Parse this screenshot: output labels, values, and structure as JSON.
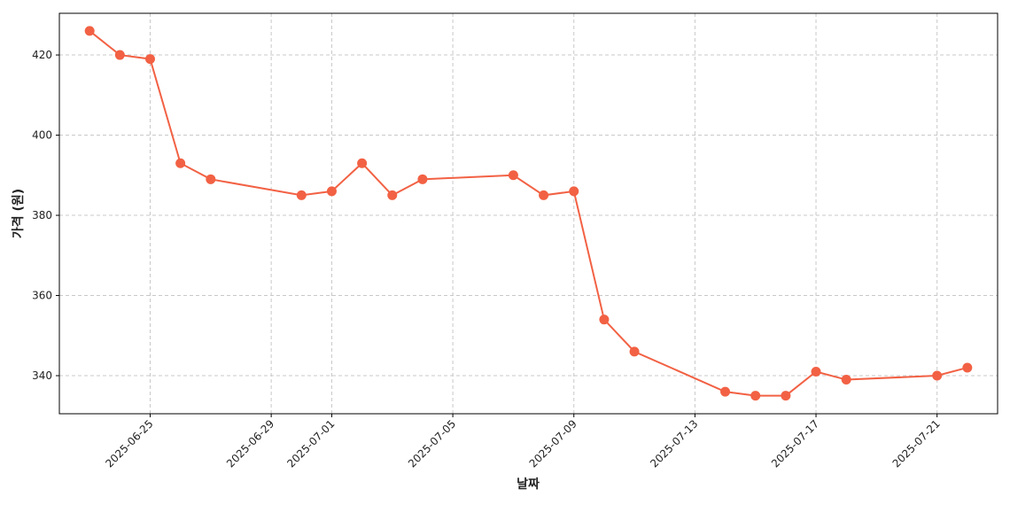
{
  "chart_data": {
    "type": "line",
    "x_label": "날짜",
    "y_label": "가격 (원)",
    "x": [
      "2025-06-23",
      "2025-06-24",
      "2025-06-25",
      "2025-06-26",
      "2025-06-27",
      "2025-06-30",
      "2025-07-01",
      "2025-07-02",
      "2025-07-03",
      "2025-07-04",
      "2025-07-07",
      "2025-07-08",
      "2025-07-09",
      "2025-07-10",
      "2025-07-11",
      "2025-07-14",
      "2025-07-15",
      "2025-07-16",
      "2025-07-17",
      "2025-07-18",
      "2025-07-21",
      "2025-07-22"
    ],
    "series": [
      {
        "color": "#f26144",
        "values": [
          426,
          420,
          419,
          393,
          389,
          385,
          386,
          393,
          385,
          389,
          390,
          385,
          386,
          354,
          346,
          336,
          335,
          335,
          341,
          339,
          340,
          342
        ]
      }
    ],
    "xlim": [
      "2025-06-22",
      "2025-07-23"
    ],
    "xticks": [
      "2025-06-25",
      "2025-06-29",
      "2025-07-01",
      "2025-07-05",
      "2025-07-09",
      "2025-07-13",
      "2025-07-17",
      "2025-07-21"
    ],
    "ylim": [
      330.5,
      430.4
    ],
    "yticks": [
      340,
      360,
      380,
      400,
      420
    ],
    "grid": true
  }
}
